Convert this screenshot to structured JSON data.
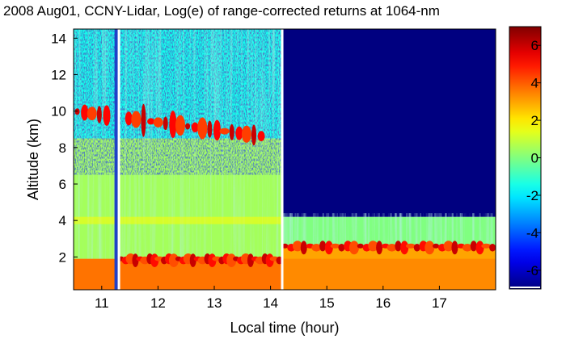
{
  "chart_data": {
    "type": "heatmap",
    "title": "2008 Aug01, CCNY-Lidar, Log(e) of range-corrected returns at 1064-nm",
    "xlabel": "Local time (hour)",
    "ylabel": "Altitude (km)",
    "x_ticks": [
      "11",
      "12",
      "13",
      "14",
      "15",
      "16",
      "17"
    ],
    "y_ticks": [
      "2",
      "4",
      "6",
      "8",
      "10",
      "12",
      "14"
    ],
    "x_tick_values": [
      11,
      12,
      13,
      14,
      15,
      16,
      17
    ],
    "y_tick_values": [
      2,
      4,
      6,
      8,
      10,
      12,
      14
    ],
    "xlim": [
      10.5,
      18.0
    ],
    "ylim": [
      0.2,
      14.5
    ],
    "colorbar": {
      "ticks": [
        "6",
        "4",
        "2",
        "0",
        "-2",
        "-4",
        "-6"
      ],
      "tick_values": [
        6,
        4,
        2,
        0,
        -2,
        -4,
        -6
      ],
      "range": [
        -7,
        7
      ],
      "colormap": "jet"
    },
    "data_gaps_hours": [
      11.27,
      14.2
    ],
    "regions": [
      {
        "x": [
          10.5,
          14.2
        ],
        "y": [
          0.2,
          1.9
        ],
        "value": 3.5
      },
      {
        "x": [
          10.5,
          14.2
        ],
        "y": [
          1.9,
          8.5
        ],
        "value": 0.5
      },
      {
        "x": [
          10.5,
          14.2
        ],
        "y": [
          8.5,
          14.5
        ],
        "value": -1.5
      },
      {
        "x": [
          14.2,
          18.0
        ],
        "y": [
          0.2,
          2.6
        ],
        "value": 3.0
      },
      {
        "x": [
          14.2,
          18.0
        ],
        "y": [
          2.6,
          4.2
        ],
        "value": 0.0
      },
      {
        "x": [
          14.2,
          18.0
        ],
        "y": [
          4.2,
          14.5
        ],
        "value": -7.0
      }
    ],
    "cloud_layer": {
      "x": [
        10.5,
        13.9
      ],
      "y_start": 10.0,
      "y_end": 8.6,
      "value": 6.0
    },
    "boundary_layer_top": {
      "value": 6.0,
      "segments": [
        [
          11.3,
          14.2,
          1.9
        ],
        [
          14.2,
          18.0,
          2.6
        ]
      ]
    }
  }
}
